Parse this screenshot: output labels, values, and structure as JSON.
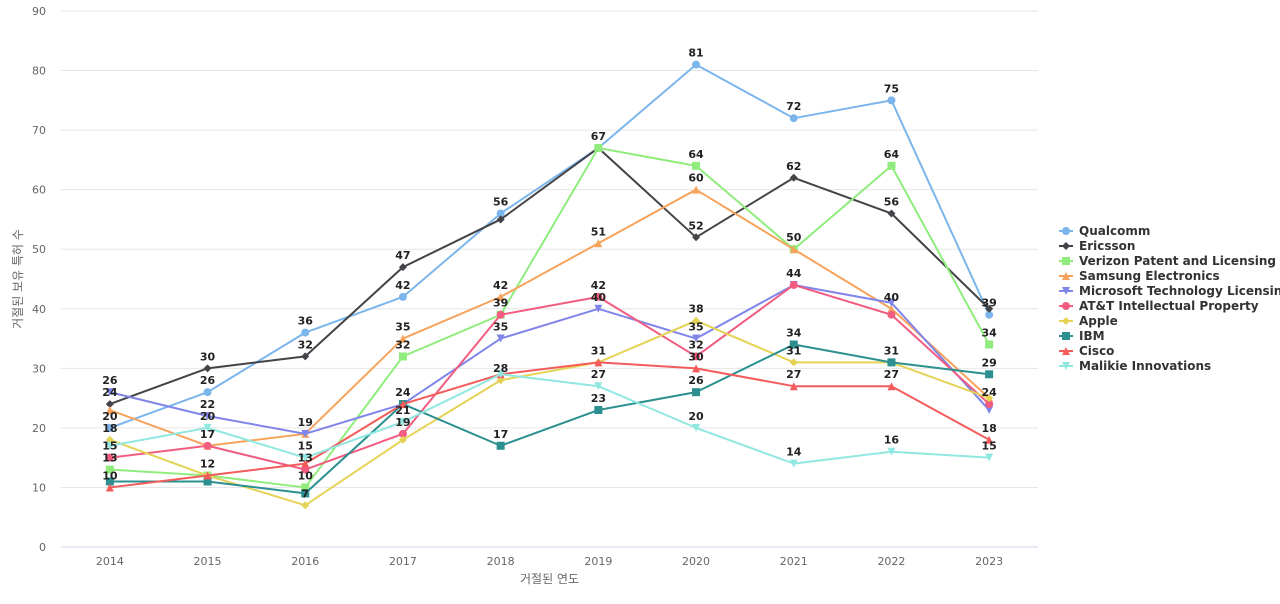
{
  "chart_data": {
    "type": "line",
    "title": "",
    "xlabel": "거절된 연도",
    "ylabel": "거절된 보유 특허 수",
    "x": [
      "2014",
      "2015",
      "2016",
      "2017",
      "2018",
      "2019",
      "2020",
      "2021",
      "2022",
      "2023"
    ],
    "ylim": [
      0,
      90
    ],
    "yticks": [
      0,
      10,
      20,
      30,
      40,
      50,
      60,
      70,
      80,
      90
    ],
    "grid": true,
    "legend_position": "right",
    "series": [
      {
        "name": "Qualcomm",
        "color": "#7cb5ec",
        "marker": "circle",
        "values": [
          20,
          26,
          36,
          42,
          56,
          67,
          81,
          72,
          75,
          39
        ]
      },
      {
        "name": "Ericsson",
        "color": "#434348",
        "marker": "diamond",
        "values": [
          24,
          30,
          32,
          47,
          55,
          67,
          52,
          62,
          56,
          40
        ]
      },
      {
        "name": "Verizon Patent and Licensing",
        "color": "#90ed7d",
        "marker": "square",
        "values": [
          13,
          12,
          10,
          32,
          39,
          67,
          64,
          50,
          64,
          34
        ]
      },
      {
        "name": "Samsung Electronics",
        "color": "#f7a35c",
        "marker": "triangle",
        "values": [
          23,
          17,
          19,
          35,
          42,
          51,
          60,
          50,
          40,
          25
        ]
      },
      {
        "name": "Microsoft Technology Licensing",
        "color": "#8085e9",
        "marker": "triangle-down",
        "values": [
          26,
          22,
          19,
          24,
          35,
          40,
          35,
          44,
          41,
          23
        ]
      },
      {
        "name": "AT&T Intellectual Property",
        "color": "#f15c80",
        "marker": "circle",
        "values": [
          15,
          17,
          13,
          19,
          39,
          42,
          32,
          44,
          39,
          24
        ]
      },
      {
        "name": "Apple",
        "color": "#e4d354",
        "marker": "diamond",
        "values": [
          18,
          12,
          7,
          18,
          28,
          31,
          38,
          31,
          31,
          25
        ]
      },
      {
        "name": "IBM",
        "color": "#2b908f",
        "marker": "square",
        "values": [
          11,
          11,
          9,
          24,
          17,
          23,
          26,
          34,
          31,
          29
        ]
      },
      {
        "name": "Cisco",
        "color": "#f45b5b",
        "marker": "triangle",
        "values": [
          10,
          12,
          14,
          24,
          29,
          31,
          30,
          27,
          27,
          18
        ]
      },
      {
        "name": "Malikie Innovations",
        "color": "#91e8e1",
        "marker": "triangle-down",
        "values": [
          17,
          20,
          15,
          21,
          29,
          27,
          20,
          14,
          16,
          15
        ]
      }
    ],
    "data_labels": [
      {
        "x": "2014",
        "values": [
          "26",
          "24",
          "20",
          "18",
          "15",
          "13",
          "10"
        ]
      },
      {
        "x": "2015",
        "values": [
          "30",
          "26",
          "22",
          "20",
          "17",
          "12"
        ]
      },
      {
        "x": "2016",
        "values": [
          "36",
          "32",
          "19",
          "15",
          "13",
          "10",
          "7"
        ]
      },
      {
        "x": "2017",
        "values": [
          "47",
          "42",
          "35",
          "32",
          "24",
          "21",
          "19"
        ]
      },
      {
        "x": "2018",
        "values": [
          "56",
          "42",
          "39",
          "35",
          "28",
          "17"
        ]
      },
      {
        "x": "2019",
        "values": [
          "67",
          "51",
          "42",
          "40",
          "31",
          "27",
          "23"
        ]
      },
      {
        "x": "2020",
        "values": [
          "81",
          "64",
          "60",
          "52",
          "38",
          "35",
          "32",
          "30",
          "26",
          "20"
        ]
      },
      {
        "x": "2021",
        "values": [
          "72",
          "62",
          "50",
          "44",
          "34",
          "31",
          "27",
          "14"
        ]
      },
      {
        "x": "2022",
        "values": [
          "75",
          "64",
          "56",
          "40",
          "31",
          "27",
          "16"
        ]
      },
      {
        "x": "2023",
        "values": [
          "39",
          "34",
          "29",
          "24",
          "18",
          "15"
        ]
      }
    ]
  }
}
